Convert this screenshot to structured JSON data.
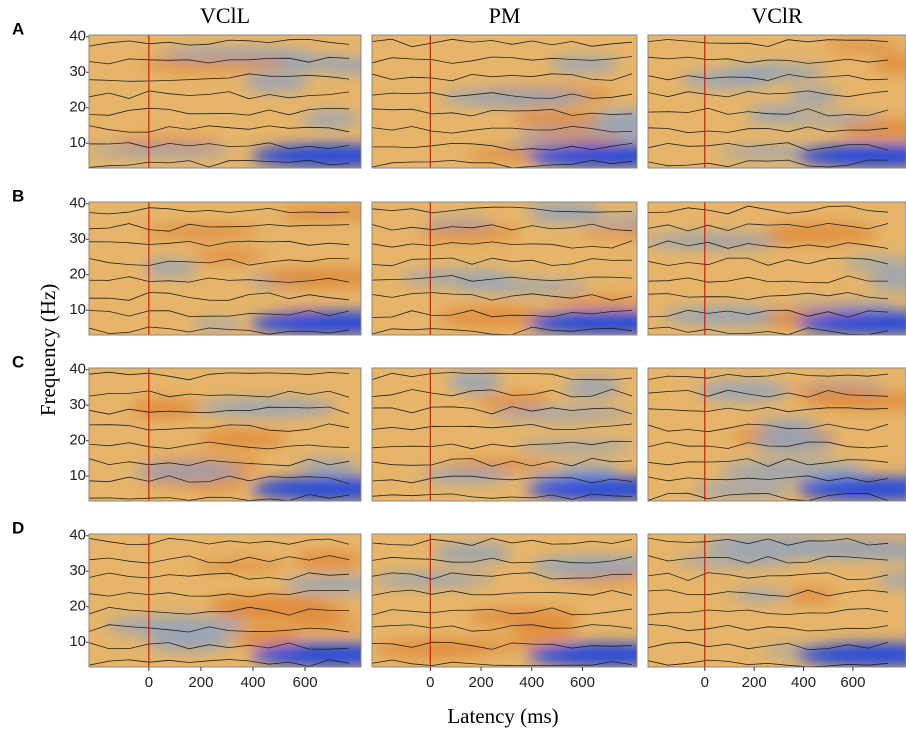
{
  "figure": {
    "columns": [
      "VClL",
      "PM",
      "VClR"
    ],
    "rows": [
      "A",
      "B",
      "C",
      "D"
    ],
    "ylabel": "Frequency (Hz)",
    "xlabel": "Latency (ms)",
    "ylim": [
      3,
      40.5
    ],
    "yticks": [
      10,
      20,
      30,
      40
    ],
    "xlim": [
      -230,
      815
    ],
    "xticks": [
      0,
      200,
      400,
      600
    ]
  }
}
